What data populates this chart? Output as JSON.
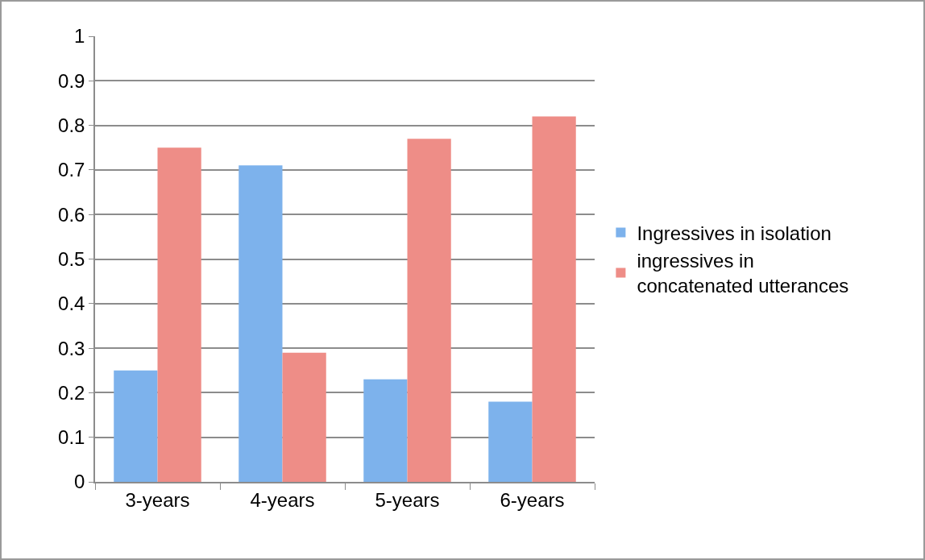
{
  "chart_data": {
    "type": "bar",
    "categories": [
      "3-years",
      "4-years",
      "5-years",
      "6-years"
    ],
    "series": [
      {
        "name": "Ingressives in isolation",
        "color": "#7db2ec",
        "values": [
          0.25,
          0.71,
          0.23,
          0.18
        ]
      },
      {
        "name": "ingressives in concatenated utterances",
        "color": "#ee8d87",
        "values": [
          0.75,
          0.29,
          0.77,
          0.82
        ]
      }
    ],
    "ylim": [
      0,
      1
    ],
    "yticks": [
      0,
      0.1,
      0.2,
      0.3,
      0.4,
      0.5,
      0.6,
      0.7,
      0.8,
      0.9,
      1
    ],
    "grid": "y",
    "legend": "right"
  }
}
